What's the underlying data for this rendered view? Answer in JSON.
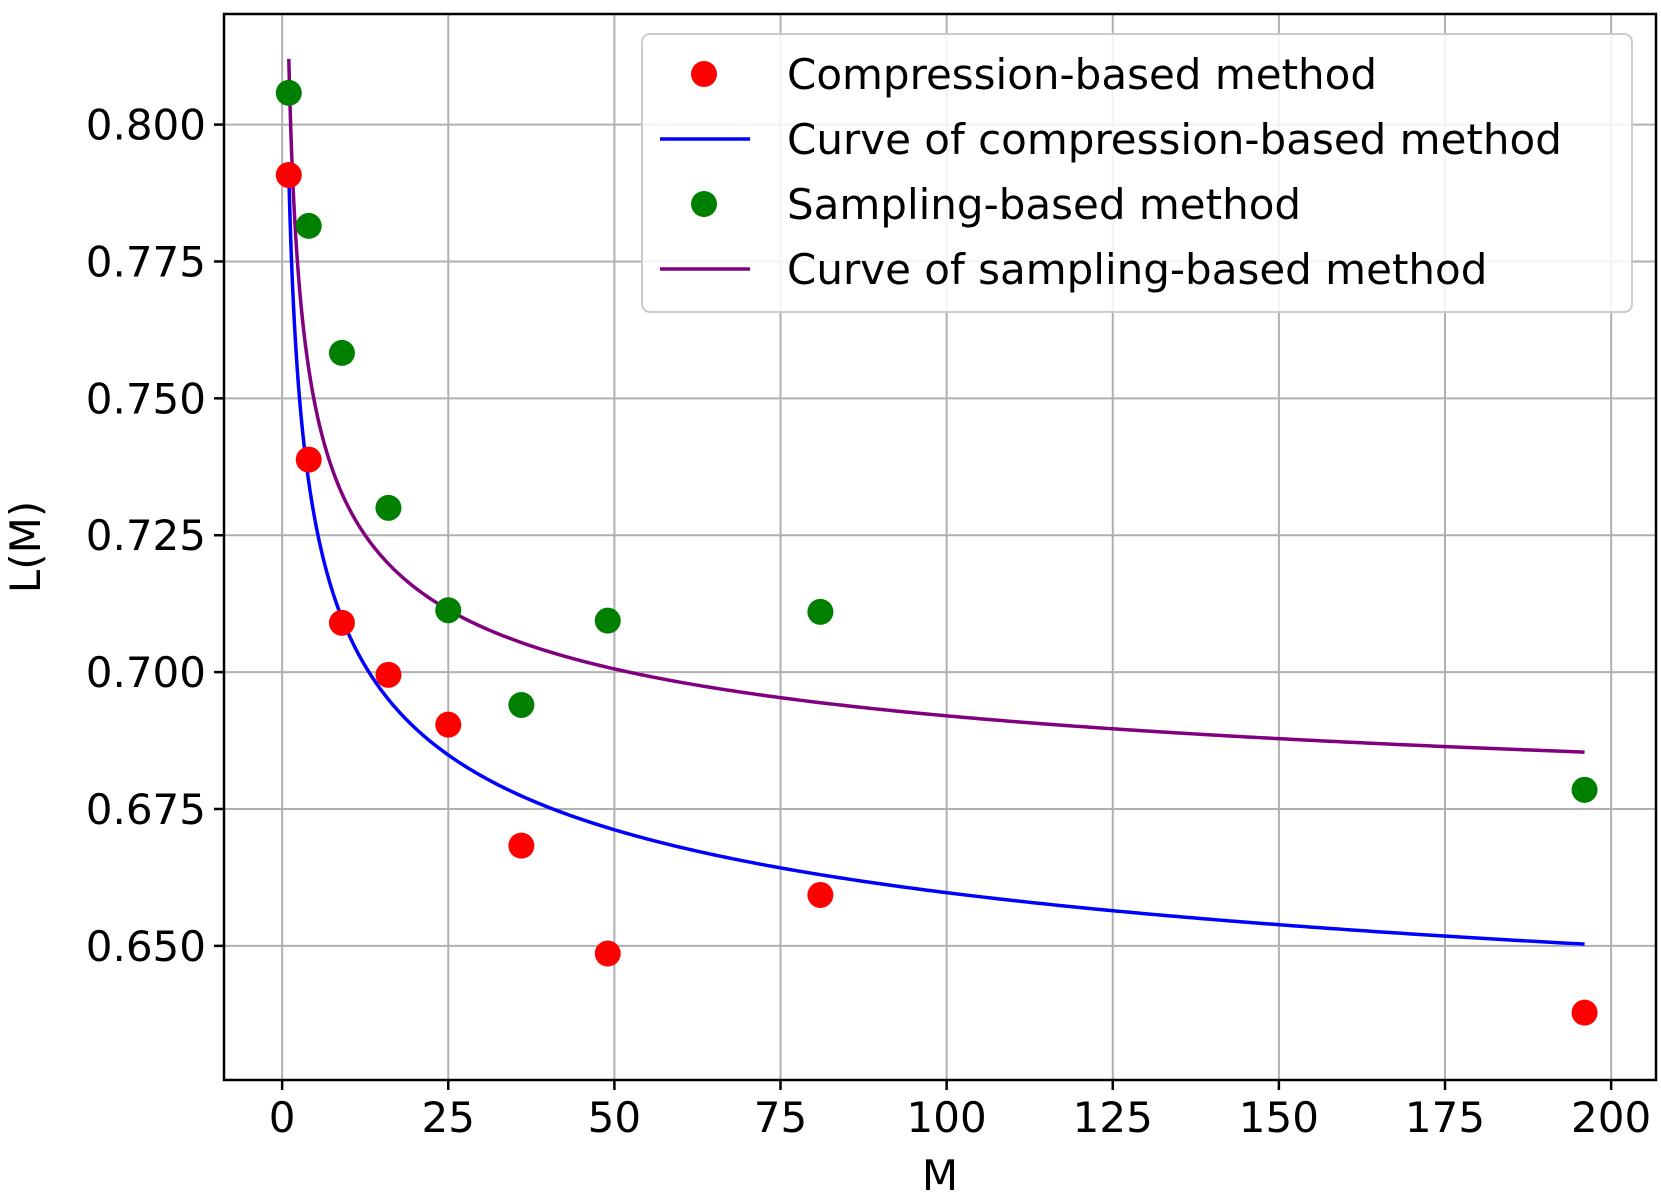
{
  "chart_data": {
    "type": "scatter",
    "title": "",
    "xlabel": "M",
    "ylabel": "L(M)",
    "xlim": [
      -8.75,
      206.75
    ],
    "ylim": [
      0.6255,
      0.8202
    ],
    "xticks": [
      0,
      25,
      50,
      75,
      100,
      125,
      150,
      175,
      200
    ],
    "yticks": [
      0.65,
      0.675,
      0.7,
      0.725,
      0.75,
      0.775,
      0.8
    ],
    "xtick_labels": [
      "0",
      "25",
      "50",
      "75",
      "100",
      "125",
      "150",
      "175",
      "200"
    ],
    "ytick_labels": [
      "0.650",
      "0.675",
      "0.700",
      "0.725",
      "0.750",
      "0.775",
      "0.800"
    ],
    "grid": true,
    "legend_position": "upper-right",
    "series": [
      {
        "name": "Compression-based method",
        "kind": "scatter",
        "color": "#ff0000",
        "x": [
          1,
          4,
          9,
          16,
          25,
          36,
          49,
          81,
          196
        ],
        "y": [
          0.7908,
          0.7388,
          0.709,
          0.6995,
          0.6904,
          0.6683,
          0.6486,
          0.6593,
          0.6378
        ]
      },
      {
        "name": "Curve of compression-based method",
        "kind": "line",
        "color": "#0000ff",
        "model": {
          "a": 0.599,
          "b": 0.192,
          "p": 0.25
        },
        "x_range": [
          1,
          196
        ]
      },
      {
        "name": "Sampling-based method",
        "kind": "scatter",
        "color": "#008000",
        "x": [
          1,
          4,
          9,
          16,
          25,
          36,
          49,
          81,
          196
        ],
        "y": [
          0.8058,
          0.7815,
          0.7583,
          0.73,
          0.7113,
          0.694,
          0.7094,
          0.711,
          0.6785
        ]
      },
      {
        "name": "Curve of sampling-based method",
        "kind": "line",
        "color": "#800080",
        "model": {
          "a": 0.659,
          "b": 0.153,
          "p": 0.333
        },
        "x_range": [
          1,
          196
        ]
      }
    ]
  }
}
